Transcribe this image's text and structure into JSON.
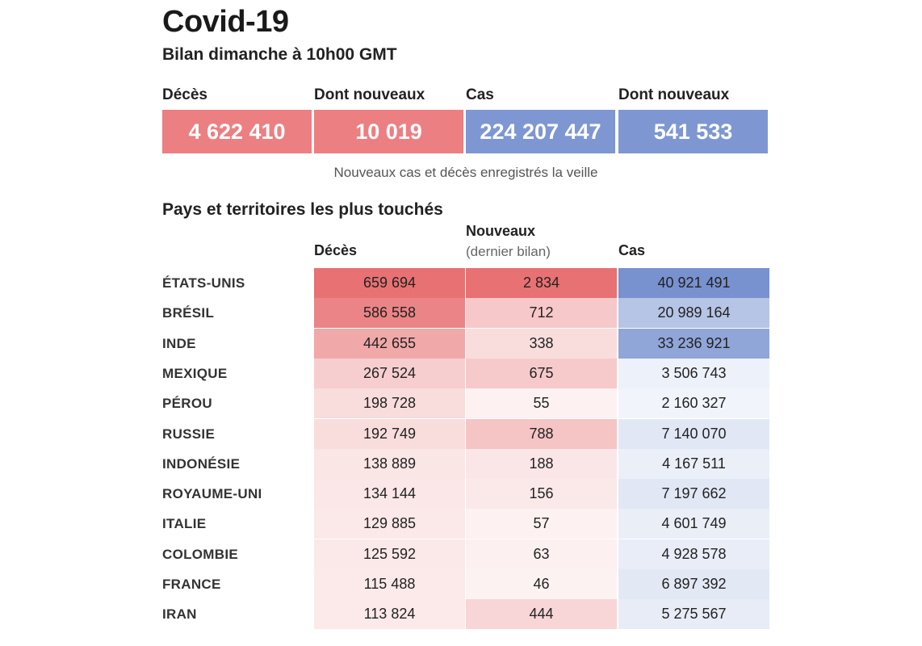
{
  "header": {
    "title": "Covid-19",
    "subtitle": "Bilan dimanche à 10h00 GMT"
  },
  "summary": {
    "items": [
      {
        "label": "Décès",
        "value": "4 622 410",
        "color": "#ec7f82"
      },
      {
        "label": "Dont nouveaux",
        "value": "10 019",
        "color": "#ec7f82"
      },
      {
        "label": "Cas",
        "value": "224 207 447",
        "color": "#7e97d3"
      },
      {
        "label": "Dont nouveaux",
        "value": "541 533",
        "color": "#7e97d3"
      }
    ],
    "note": "Nouveaux cas et décès enregistrés la veille"
  },
  "colors": {
    "deaths_scale": "#e87173",
    "cases_scale": "#7891cf"
  },
  "chart_data": {
    "type": "table",
    "title": "Pays et territoires les plus touchés",
    "columns": [
      {
        "key": "deces",
        "label": "Décès",
        "sublabel": ""
      },
      {
        "key": "nouveaux",
        "label": "Nouveaux",
        "sublabel": "(dernier bilan)"
      },
      {
        "key": "cas",
        "label": "Cas",
        "sublabel": ""
      }
    ],
    "rows": [
      {
        "country": "ÉTATS-UNIS",
        "deces": 659694,
        "nouveaux": 2834,
        "cas": 40921491,
        "deces_text": "659 694",
        "nouveaux_text": "2 834",
        "cas_text": "40 921 491"
      },
      {
        "country": "BRÉSIL",
        "deces": 586558,
        "nouveaux": 712,
        "cas": 20989164,
        "deces_text": "586 558",
        "nouveaux_text": "712",
        "cas_text": "20 989 164"
      },
      {
        "country": "INDE",
        "deces": 442655,
        "nouveaux": 338,
        "cas": 33236921,
        "deces_text": "442 655",
        "nouveaux_text": "338",
        "cas_text": "33 236 921"
      },
      {
        "country": "MEXIQUE",
        "deces": 267524,
        "nouveaux": 675,
        "cas": 3506743,
        "deces_text": "267 524",
        "nouveaux_text": "675",
        "cas_text": "3 506 743"
      },
      {
        "country": "PÉROU",
        "deces": 198728,
        "nouveaux": 55,
        "cas": 2160327,
        "deces_text": "198 728",
        "nouveaux_text": "55",
        "cas_text": "2 160 327"
      },
      {
        "country": "RUSSIE",
        "deces": 192749,
        "nouveaux": 788,
        "cas": 7140070,
        "deces_text": "192 749",
        "nouveaux_text": "788",
        "cas_text": "7 140 070"
      },
      {
        "country": "INDONÉSIE",
        "deces": 138889,
        "nouveaux": 188,
        "cas": 4167511,
        "deces_text": "138 889",
        "nouveaux_text": "188",
        "cas_text": "4 167 511"
      },
      {
        "country": "ROYAUME-UNI",
        "deces": 134144,
        "nouveaux": 156,
        "cas": 7197662,
        "deces_text": "134 144",
        "nouveaux_text": "156",
        "cas_text": "7 197 662"
      },
      {
        "country": "ITALIE",
        "deces": 129885,
        "nouveaux": 57,
        "cas": 4601749,
        "deces_text": "129 885",
        "nouveaux_text": "57",
        "cas_text": "4 601 749"
      },
      {
        "country": "COLOMBIE",
        "deces": 125592,
        "nouveaux": 63,
        "cas": 4928578,
        "deces_text": "125 592",
        "nouveaux_text": "63",
        "cas_text": "4 928 578"
      },
      {
        "country": "FRANCE",
        "deces": 115488,
        "nouveaux": 46,
        "cas": 6897392,
        "deces_text": "115 488",
        "nouveaux_text": "46",
        "cas_text": "6 897 392"
      },
      {
        "country": "IRAN",
        "deces": 113824,
        "nouveaux": 444,
        "cas": 5275567,
        "deces_text": "113 824",
        "nouveaux_text": "444",
        "cas_text": "5 275 567"
      }
    ]
  }
}
